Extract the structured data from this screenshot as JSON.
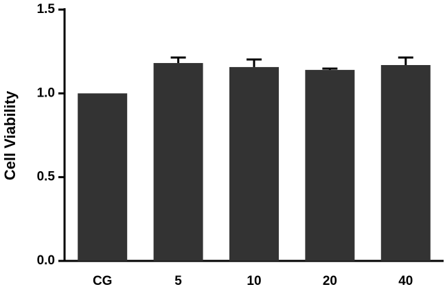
{
  "chart_data": {
    "type": "bar",
    "y_label": "Cell Viability",
    "categories": [
      "CG",
      "5",
      "10",
      "20",
      "40"
    ],
    "values": [
      1.0,
      1.181,
      1.157,
      1.14,
      1.169
    ],
    "errors": [
      null,
      0.033,
      0.045,
      0.008,
      0.045
    ],
    "color": "#333333",
    "ylim": [
      0,
      1.5
    ],
    "yticks": [
      {
        "value": 0,
        "label": "0.0"
      },
      0.5,
      {
        "value": 1,
        "label": "1.0"
      },
      1.5
    ]
  }
}
